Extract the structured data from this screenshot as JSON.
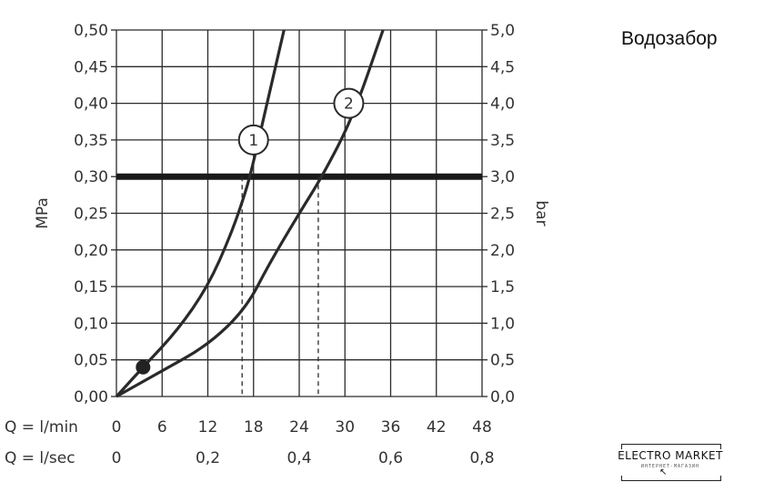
{
  "title": "Водозабор",
  "logo": {
    "text": "ELECTRO MARKET",
    "sub": "ИНТЕРНЕТ-МАГАЗИН",
    "icon": "cursor-icon"
  },
  "chart_data": {
    "type": "line",
    "ylabel_left": "MPa",
    "ylabel_right": "bar",
    "ylim": [
      0,
      0.5
    ],
    "xlim": [
      0,
      48
    ],
    "y_ticks_left": [
      "0,00",
      "0,05",
      "0,10",
      "0,15",
      "0,20",
      "0,25",
      "0,30",
      "0,35",
      "0,40",
      "0,45",
      "0,50"
    ],
    "y_ticks_right": [
      "0,0",
      "0,5",
      "1,0",
      "1,5",
      "2,0",
      "2,5",
      "3,0",
      "3,5",
      "4,0",
      "4,5",
      "5,0"
    ],
    "x_rows": [
      {
        "label": "Q = l/min",
        "ticks": [
          "0",
          "6",
          "12",
          "18",
          "24",
          "30",
          "36",
          "42",
          "48"
        ],
        "positions": [
          0,
          6,
          12,
          18,
          24,
          30,
          36,
          42,
          48
        ]
      },
      {
        "label": "Q = l/sec",
        "ticks": [
          "0",
          "0,2",
          "0,4",
          "0,6",
          "0,8"
        ],
        "positions": [
          0,
          12,
          24,
          36,
          48
        ]
      }
    ],
    "reference_line": {
      "y": 0.3
    },
    "marker": {
      "x": 3.5,
      "y": 0.04
    },
    "series": [
      {
        "name": "1",
        "x": [
          0,
          3.5,
          8,
          12,
          15,
          17,
          18,
          20,
          22
        ],
        "y": [
          0,
          0.04,
          0.09,
          0.15,
          0.22,
          0.28,
          0.32,
          0.41,
          0.5
        ],
        "tag_at": {
          "x": 18,
          "y": 0.35
        },
        "dropline": {
          "x": 16.5,
          "y": 0.3
        }
      },
      {
        "name": "2",
        "x": [
          0,
          6,
          12,
          17,
          20,
          24,
          27,
          31,
          35
        ],
        "y": [
          0,
          0.035,
          0.07,
          0.12,
          0.18,
          0.25,
          0.3,
          0.38,
          0.5
        ],
        "tag_at": {
          "x": 30.5,
          "y": 0.4
        },
        "dropline": {
          "x": 26.5,
          "y": 0.3
        }
      }
    ],
    "grid": true
  }
}
